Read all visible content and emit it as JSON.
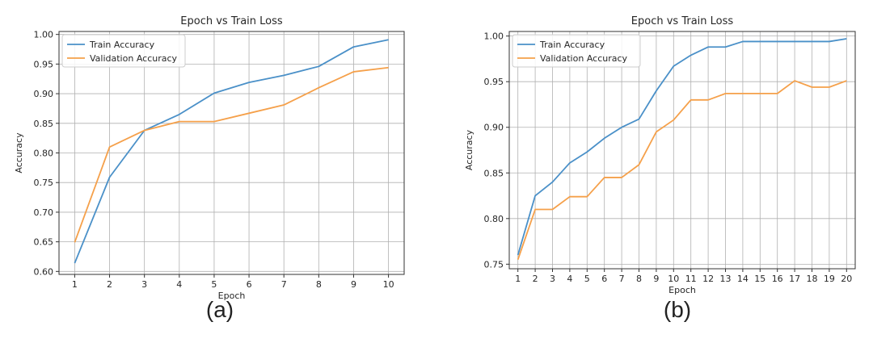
{
  "captions": {
    "a": "(a)",
    "b": "(b)"
  },
  "colors": {
    "train": "#4a90c8",
    "validation": "#f5a04a",
    "grid": "#b0b0b0",
    "axis": "#333333"
  },
  "chart_data": [
    {
      "type": "line",
      "title": "Epoch vs Train Loss",
      "xlabel": "Epoch",
      "ylabel": "Accuracy",
      "x": [
        1,
        2,
        3,
        4,
        5,
        6,
        7,
        8,
        9,
        10
      ],
      "xticks": [
        "1",
        "2",
        "3",
        "4",
        "5",
        "6",
        "7",
        "8",
        "9",
        "10"
      ],
      "yticks": [
        "0.60",
        "0.65",
        "0.70",
        "0.75",
        "0.80",
        "0.85",
        "0.90",
        "0.95",
        "1.00"
      ],
      "ylim": [
        0.595,
        1.005
      ],
      "xlim": [
        0.55,
        10.45
      ],
      "grid": true,
      "legend": "upper-left",
      "series": [
        {
          "name": "Train Accuracy",
          "color": "train",
          "values": [
            0.614,
            0.759,
            0.838,
            0.865,
            0.901,
            0.919,
            0.931,
            0.946,
            0.979,
            0.991
          ]
        },
        {
          "name": "Validation Accuracy",
          "color": "validation",
          "values": [
            0.649,
            0.81,
            0.838,
            0.853,
            0.853,
            0.867,
            0.881,
            0.91,
            0.937,
            0.944
          ]
        }
      ]
    },
    {
      "type": "line",
      "title": "Epoch vs Train Loss",
      "xlabel": "Epoch",
      "ylabel": "Accuracy",
      "x": [
        1,
        2,
        3,
        4,
        5,
        6,
        7,
        8,
        9,
        10,
        11,
        12,
        13,
        14,
        15,
        16,
        17,
        18,
        19,
        20
      ],
      "xticks": [
        "1",
        "2",
        "3",
        "4",
        "5",
        "6",
        "7",
        "8",
        "9",
        "10",
        "11",
        "12",
        "13",
        "14",
        "15",
        "16",
        "17",
        "18",
        "19",
        "20"
      ],
      "yticks": [
        "0.75",
        "0.80",
        "0.85",
        "0.90",
        "0.95",
        "1.00"
      ],
      "ylim": [
        0.745,
        1.005
      ],
      "xlim": [
        0.5,
        20.5
      ],
      "grid": true,
      "legend": "upper-left",
      "series": [
        {
          "name": "Train Accuracy",
          "color": "train",
          "values": [
            0.76,
            0.825,
            0.84,
            0.861,
            0.873,
            0.888,
            0.9,
            0.909,
            0.94,
            0.967,
            0.979,
            0.988,
            0.988,
            0.994,
            0.994,
            0.994,
            0.994,
            0.994,
            0.994,
            0.997
          ]
        },
        {
          "name": "Validation Accuracy",
          "color": "validation",
          "values": [
            0.755,
            0.81,
            0.81,
            0.824,
            0.824,
            0.845,
            0.845,
            0.859,
            0.895,
            0.908,
            0.93,
            0.93,
            0.937,
            0.937,
            0.937,
            0.937,
            0.951,
            0.944,
            0.944,
            0.951
          ]
        }
      ]
    }
  ]
}
